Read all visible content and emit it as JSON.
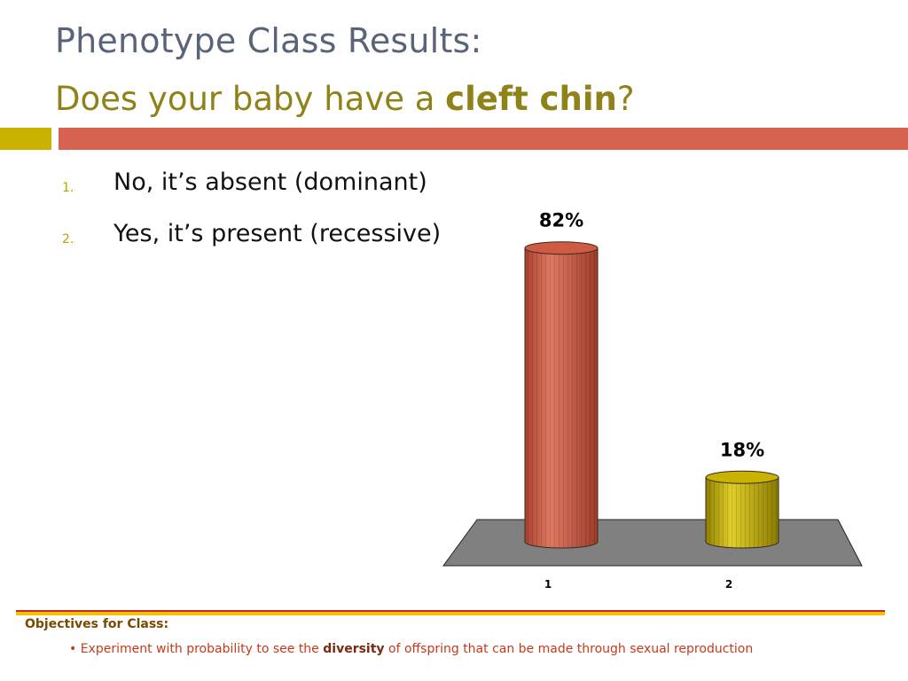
{
  "title": {
    "line1": "Phenotype Class Results:",
    "line2_before": "Does your baby have a ",
    "line2_bold": "cleft chin",
    "line2_after": "?"
  },
  "list": [
    {
      "num": "1.",
      "text": "No, it’s absent (dominant)"
    },
    {
      "num": "2.",
      "text": "Yes, it’s present (recessive)"
    }
  ],
  "colors": {
    "title": "#5a6478",
    "subtitle": "#8e8218",
    "band_left": "#c9b300",
    "band_right": "#d6634f",
    "floor": "#808080",
    "footer_heading": "#7a4a00",
    "footer_text": "#c43a1a"
  },
  "chart_data": {
    "type": "bar",
    "style": "3d-cylinder",
    "categories": [
      "1",
      "2"
    ],
    "values": [
      82,
      18
    ],
    "data_labels": [
      "82%",
      "18%"
    ],
    "colors": [
      "#cf5b45",
      "#c9b300"
    ],
    "ylim": [
      0,
      100
    ],
    "title": "",
    "xlabel": "",
    "ylabel": "",
    "grid": false
  },
  "footer": {
    "heading": "Objectives for Class:",
    "bullet_prefix": "• Experiment with probability to see the ",
    "bullet_bold": "diversity",
    "bullet_suffix": " of offspring that can be made through sexual reproduction"
  }
}
